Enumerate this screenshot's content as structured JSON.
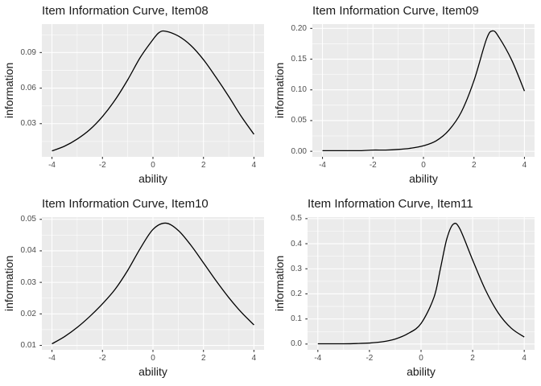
{
  "figure": {
    "background": "#FFFFFF",
    "layout": "2x2-grid-of-item-information-curves"
  },
  "style": {
    "panel_bg": "#EBEBEB",
    "grid_color": "#FFFFFF",
    "curve_color": "#000000",
    "tick_label_color": "#4D4D4D",
    "tick_mark_color": "#333333",
    "text_color": "#1A1A1A"
  },
  "chart_data": [
    {
      "type": "line",
      "title": "Item Information Curve, Item08",
      "xlabel": "ability",
      "ylabel": "information",
      "grid": true,
      "legend": "none",
      "xlim": [
        -4.4,
        4.4
      ],
      "ylim": [
        0.002,
        0.114
      ],
      "x_ticks": [
        -4,
        -2,
        0,
        2,
        4
      ],
      "x_tick_labels": [
        "-4",
        "-2",
        "0",
        "2",
        "4"
      ],
      "y_ticks": [
        0.03,
        0.06,
        0.09
      ],
      "y_tick_labels": [
        "0.03",
        "0.06",
        "0.09"
      ],
      "series": [
        {
          "name": "Item08",
          "x": [
            -4,
            -3.5,
            -3,
            -2.5,
            -2,
            -1.5,
            -1,
            -0.5,
            0,
            0.25,
            0.5,
            1,
            1.5,
            2,
            2.5,
            3,
            3.5,
            4
          ],
          "y": [
            0.007,
            0.011,
            0.017,
            0.025,
            0.036,
            0.05,
            0.067,
            0.086,
            0.101,
            0.107,
            0.108,
            0.104,
            0.096,
            0.084,
            0.069,
            0.053,
            0.036,
            0.021
          ]
        }
      ]
    },
    {
      "type": "line",
      "title": "Item Information Curve, Item09",
      "xlabel": "ability",
      "ylabel": "information",
      "grid": true,
      "legend": "none",
      "xlim": [
        -4.4,
        4.4
      ],
      "ylim": [
        -0.009,
        0.207
      ],
      "x_ticks": [
        -4,
        -2,
        0,
        2,
        4
      ],
      "x_tick_labels": [
        "-4",
        "-2",
        "0",
        "2",
        "4"
      ],
      "y_ticks": [
        0.0,
        0.05,
        0.1,
        0.15,
        0.2
      ],
      "y_tick_labels": [
        "0.00",
        "0.05",
        "0.10",
        "0.15",
        "0.20"
      ],
      "series": [
        {
          "name": "Item09",
          "x": [
            -4,
            -3.5,
            -3,
            -2.5,
            -2,
            -1.5,
            -1,
            -0.5,
            0,
            0.5,
            1,
            1.5,
            2,
            2.5,
            2.75,
            3,
            3.5,
            4
          ],
          "y": [
            0.001,
            0.001,
            0.001,
            0.001,
            0.002,
            0.002,
            0.003,
            0.005,
            0.009,
            0.017,
            0.034,
            0.064,
            0.115,
            0.183,
            0.196,
            0.185,
            0.148,
            0.098
          ]
        }
      ]
    },
    {
      "type": "line",
      "title": "Item Information Curve, Item10",
      "xlabel": "ability",
      "ylabel": "information",
      "grid": true,
      "legend": "none",
      "xlim": [
        -4.4,
        4.4
      ],
      "ylim": [
        0.0086,
        0.0507
      ],
      "x_ticks": [
        -4,
        -2,
        0,
        2,
        4
      ],
      "x_tick_labels": [
        "-4",
        "-2",
        "0",
        "2",
        "4"
      ],
      "y_ticks": [
        0.01,
        0.02,
        0.03,
        0.04,
        0.05
      ],
      "y_tick_labels": [
        "0.01",
        "0.02",
        "0.03",
        "0.04",
        "0.05"
      ],
      "series": [
        {
          "name": "Item10",
          "x": [
            -4,
            -3.5,
            -3,
            -2.5,
            -2,
            -1.5,
            -1,
            -0.5,
            0,
            0.5,
            1,
            1.5,
            2,
            2.5,
            3,
            3.5,
            4
          ],
          "y": [
            0.0105,
            0.0128,
            0.0157,
            0.0192,
            0.0232,
            0.0278,
            0.0338,
            0.0408,
            0.0468,
            0.0488,
            0.0465,
            0.0418,
            0.0362,
            0.0305,
            0.0252,
            0.0205,
            0.0165
          ]
        }
      ]
    },
    {
      "type": "line",
      "title": "Item Information Curve, Item11",
      "xlabel": "ability",
      "ylabel": "information",
      "grid": true,
      "legend": "none",
      "xlim": [
        -4.4,
        4.4
      ],
      "ylim": [
        -0.023,
        0.506
      ],
      "x_ticks": [
        -4,
        -2,
        0,
        2,
        4
      ],
      "x_tick_labels": [
        "-4",
        "-2",
        "0",
        "2",
        "4"
      ],
      "y_ticks": [
        0.0,
        0.1,
        0.2,
        0.3,
        0.4,
        0.5
      ],
      "y_tick_labels": [
        "0.0",
        "0.1",
        "0.2",
        "0.3",
        "0.4",
        "0.5"
      ],
      "series": [
        {
          "name": "Item11",
          "x": [
            -4,
            -3.5,
            -3,
            -2.5,
            -2,
            -1.5,
            -1,
            -0.5,
            0,
            0.5,
            0.75,
            1,
            1.25,
            1.5,
            2,
            2.5,
            3,
            3.5,
            4
          ],
          "y": [
            0.001,
            0.001,
            0.001,
            0.002,
            0.004,
            0.009,
            0.02,
            0.042,
            0.082,
            0.186,
            0.3,
            0.42,
            0.478,
            0.46,
            0.335,
            0.215,
            0.123,
            0.063,
            0.028
          ]
        }
      ]
    }
  ]
}
